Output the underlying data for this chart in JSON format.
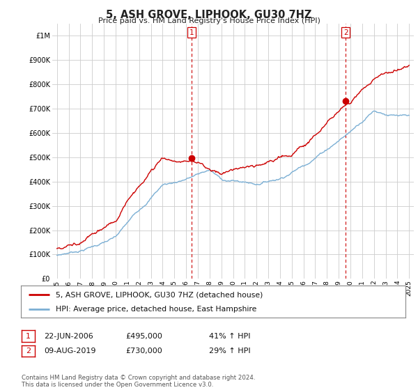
{
  "title": "5, ASH GROVE, LIPHOOK, GU30 7HZ",
  "subtitle": "Price paid vs. HM Land Registry's House Price Index (HPI)",
  "ytick_values": [
    0,
    100000,
    200000,
    300000,
    400000,
    500000,
    600000,
    700000,
    800000,
    900000,
    1000000
  ],
  "ylim": [
    0,
    1050000
  ],
  "sale1_date_x": 2006.47,
  "sale1_price": 495000,
  "sale1_label": "1",
  "sale2_date_x": 2019.6,
  "sale2_price": 730000,
  "sale2_label": "2",
  "legend_line1": "5, ASH GROVE, LIPHOOK, GU30 7HZ (detached house)",
  "legend_line2": "HPI: Average price, detached house, East Hampshire",
  "table_row1": [
    "1",
    "22-JUN-2006",
    "£495,000",
    "41% ↑ HPI"
  ],
  "table_row2": [
    "2",
    "09-AUG-2019",
    "£730,000",
    "29% ↑ HPI"
  ],
  "footer": "Contains HM Land Registry data © Crown copyright and database right 2024.\nThis data is licensed under the Open Government Licence v3.0.",
  "red_color": "#cc0000",
  "blue_color": "#7bafd4",
  "grid_color": "#cccccc",
  "bg_color": "#ffffff",
  "vline_color": "#cc0000",
  "xlim_left": 1994.6,
  "xlim_right": 2025.4
}
